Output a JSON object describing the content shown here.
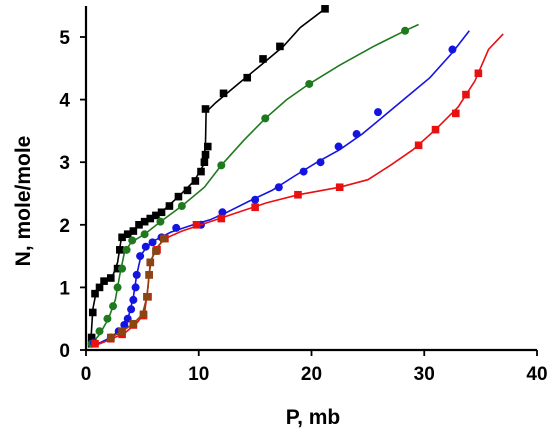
{
  "chart_data": {
    "type": "scatter",
    "xlabel": "P, mb",
    "ylabel": "N, mole/mole",
    "xlim": [
      0,
      40
    ],
    "ylim": [
      0,
      5.4
    ],
    "xticks": [
      0,
      10,
      20,
      30,
      40
    ],
    "yticks": [
      0,
      1,
      2,
      3,
      4,
      5
    ],
    "grid": false,
    "legend": "none",
    "series": [
      {
        "color": "#000000",
        "marker": "square",
        "points": [
          [
            0.5,
            0.1
          ],
          [
            0.5,
            0.2
          ],
          [
            0.6,
            0.6
          ],
          [
            0.8,
            0.9
          ],
          [
            1.2,
            1.0
          ],
          [
            1.6,
            1.1
          ],
          [
            2.2,
            1.15
          ],
          [
            2.8,
            1.3
          ],
          [
            3.0,
            1.6
          ],
          [
            3.2,
            1.8
          ],
          [
            3.7,
            1.85
          ],
          [
            4.2,
            1.9
          ],
          [
            4.7,
            2.0
          ],
          [
            5.2,
            2.05
          ],
          [
            5.7,
            2.1
          ],
          [
            6.2,
            2.15
          ],
          [
            6.7,
            2.2
          ],
          [
            7.4,
            2.3
          ],
          [
            8.2,
            2.45
          ],
          [
            9.0,
            2.55
          ],
          [
            9.7,
            2.7
          ],
          [
            10.2,
            2.85
          ],
          [
            10.5,
            3.0
          ],
          [
            10.6,
            3.12
          ],
          [
            10.8,
            3.25
          ],
          [
            10.6,
            3.85
          ],
          [
            12.2,
            4.1
          ],
          [
            14.3,
            4.35
          ],
          [
            15.7,
            4.65
          ],
          [
            17.2,
            4.85
          ],
          [
            21.2,
            5.45
          ]
        ],
        "line": [
          [
            0.4,
            0.05
          ],
          [
            0.6,
            0.65
          ],
          [
            0.9,
            0.92
          ],
          [
            1.6,
            1.08
          ],
          [
            2.4,
            1.2
          ],
          [
            2.8,
            1.4
          ],
          [
            3.1,
            1.75
          ],
          [
            3.6,
            1.85
          ],
          [
            4.6,
            1.98
          ],
          [
            5.7,
            2.08
          ],
          [
            6.8,
            2.22
          ],
          [
            8.2,
            2.45
          ],
          [
            9.6,
            2.7
          ],
          [
            10.4,
            2.95
          ],
          [
            10.6,
            3.3
          ],
          [
            10.65,
            3.8
          ],
          [
            11.5,
            3.95
          ],
          [
            13.5,
            4.25
          ],
          [
            15.5,
            4.55
          ],
          [
            17.5,
            4.85
          ],
          [
            19.0,
            5.15
          ],
          [
            21.2,
            5.45
          ]
        ]
      },
      {
        "color": "#1f7a1f",
        "marker": "circle",
        "points": [
          [
            0.5,
            0.1
          ],
          [
            1.2,
            0.3
          ],
          [
            1.9,
            0.5
          ],
          [
            2.4,
            0.7
          ],
          [
            2.8,
            1.0
          ],
          [
            3.2,
            1.3
          ],
          [
            3.6,
            1.6
          ],
          [
            4.1,
            1.75
          ],
          [
            5.2,
            1.85
          ],
          [
            6.6,
            2.05
          ],
          [
            8.5,
            2.3
          ],
          [
            12.0,
            2.95
          ],
          [
            15.9,
            3.7
          ],
          [
            19.8,
            4.25
          ],
          [
            28.3,
            5.1
          ]
        ],
        "line": [
          [
            0.3,
            0.05
          ],
          [
            1.2,
            0.25
          ],
          [
            2.0,
            0.5
          ],
          [
            2.6,
            0.8
          ],
          [
            3.0,
            1.2
          ],
          [
            3.4,
            1.55
          ],
          [
            4.0,
            1.72
          ],
          [
            5.2,
            1.85
          ],
          [
            6.6,
            2.05
          ],
          [
            8.5,
            2.3
          ],
          [
            10.5,
            2.6
          ],
          [
            12.0,
            2.95
          ],
          [
            14.0,
            3.35
          ],
          [
            15.9,
            3.7
          ],
          [
            17.8,
            4.0
          ],
          [
            19.8,
            4.25
          ],
          [
            22.5,
            4.55
          ],
          [
            25.5,
            4.85
          ],
          [
            28.3,
            5.1
          ],
          [
            29.5,
            5.2
          ]
        ]
      },
      {
        "color": "#1414e0",
        "marker": "circle",
        "points": [
          [
            0.7,
            0.12
          ],
          [
            2.2,
            0.2
          ],
          [
            2.9,
            0.3
          ],
          [
            3.4,
            0.4
          ],
          [
            3.7,
            0.5
          ],
          [
            4.0,
            0.65
          ],
          [
            4.2,
            0.8
          ],
          [
            4.4,
            1.0
          ],
          [
            4.5,
            1.2
          ],
          [
            4.8,
            1.5
          ],
          [
            5.3,
            1.65
          ],
          [
            5.9,
            1.72
          ],
          [
            6.7,
            1.8
          ],
          [
            8.0,
            1.95
          ],
          [
            10.2,
            2.0
          ],
          [
            12.1,
            2.2
          ],
          [
            15.0,
            2.4
          ],
          [
            17.1,
            2.6
          ],
          [
            19.3,
            2.85
          ],
          [
            20.8,
            3.0
          ],
          [
            22.4,
            3.25
          ],
          [
            24.0,
            3.45
          ],
          [
            25.9,
            3.8
          ],
          [
            32.5,
            4.8
          ]
        ],
        "line": [
          [
            0.5,
            0.05
          ],
          [
            2.2,
            0.2
          ],
          [
            3.2,
            0.35
          ],
          [
            3.8,
            0.55
          ],
          [
            4.2,
            0.85
          ],
          [
            4.5,
            1.2
          ],
          [
            4.9,
            1.52
          ],
          [
            5.4,
            1.65
          ],
          [
            6.2,
            1.76
          ],
          [
            7.5,
            1.88
          ],
          [
            9.5,
            2.0
          ],
          [
            11.0,
            2.08
          ],
          [
            12.5,
            2.2
          ],
          [
            14.5,
            2.38
          ],
          [
            16.5,
            2.55
          ],
          [
            18.5,
            2.78
          ],
          [
            20.5,
            3.0
          ],
          [
            22.5,
            3.2
          ],
          [
            24.5,
            3.45
          ],
          [
            26.5,
            3.75
          ],
          [
            28.5,
            4.05
          ],
          [
            30.5,
            4.35
          ],
          [
            32.5,
            4.75
          ],
          [
            34.0,
            5.1
          ]
        ]
      },
      {
        "color": "#e81010",
        "marker": "square",
        "points": [
          [
            0.8,
            0.1
          ],
          [
            2.2,
            0.18
          ],
          [
            3.2,
            0.25
          ],
          [
            4.2,
            0.4
          ],
          [
            5.1,
            0.55
          ],
          [
            5.5,
            0.85
          ],
          [
            5.6,
            1.2
          ],
          [
            5.7,
            1.4
          ],
          [
            6.3,
            1.6
          ],
          [
            7.0,
            1.78
          ],
          [
            9.8,
            2.0
          ],
          [
            12.0,
            2.1
          ],
          [
            15.0,
            2.28
          ],
          [
            18.8,
            2.48
          ],
          [
            22.5,
            2.6
          ],
          [
            29.5,
            3.27
          ],
          [
            31.0,
            3.52
          ],
          [
            32.8,
            3.78
          ],
          [
            33.7,
            4.08
          ],
          [
            34.8,
            4.42
          ]
        ],
        "line": [
          [
            0.5,
            0.05
          ],
          [
            2.2,
            0.17
          ],
          [
            3.5,
            0.28
          ],
          [
            4.6,
            0.45
          ],
          [
            5.2,
            0.6
          ],
          [
            5.5,
            1.0
          ],
          [
            5.7,
            1.4
          ],
          [
            6.2,
            1.62
          ],
          [
            7.0,
            1.78
          ],
          [
            8.5,
            1.9
          ],
          [
            11.0,
            2.05
          ],
          [
            13.5,
            2.2
          ],
          [
            16.0,
            2.35
          ],
          [
            18.8,
            2.48
          ],
          [
            22.5,
            2.6
          ],
          [
            25.0,
            2.72
          ],
          [
            27.0,
            2.95
          ],
          [
            29.0,
            3.2
          ],
          [
            31.0,
            3.52
          ],
          [
            33.0,
            3.88
          ],
          [
            34.5,
            4.3
          ],
          [
            35.7,
            4.8
          ],
          [
            37.0,
            5.05
          ]
        ]
      },
      {
        "color": "#8b4513",
        "marker": "square",
        "points": [
          [
            2.2,
            0.2
          ],
          [
            3.2,
            0.3
          ],
          [
            4.2,
            0.42
          ],
          [
            5.1,
            0.57
          ],
          [
            5.4,
            0.85
          ],
          [
            5.6,
            1.2
          ],
          [
            5.7,
            1.4
          ],
          [
            6.2,
            1.58
          ],
          [
            6.9,
            1.78
          ]
        ],
        "line": [
          [
            2.2,
            0.2
          ],
          [
            3.2,
            0.3
          ],
          [
            4.2,
            0.42
          ],
          [
            5.0,
            0.57
          ],
          [
            5.4,
            0.85
          ],
          [
            5.6,
            1.2
          ],
          [
            5.8,
            1.45
          ],
          [
            6.3,
            1.62
          ],
          [
            6.9,
            1.78
          ]
        ]
      }
    ]
  }
}
